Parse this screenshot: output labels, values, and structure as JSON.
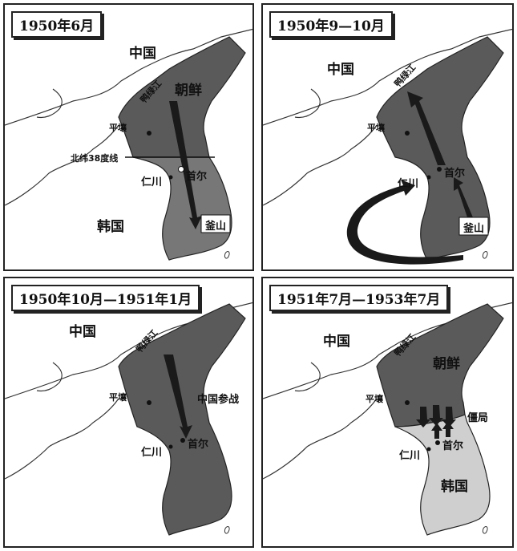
{
  "panels": [
    {
      "title": "1950年6月",
      "labels": {
        "china": "中国",
        "north_korea": "朝鲜",
        "river": "鸭绿江",
        "pyongyang": "平壤",
        "parallel": "北纬38度线",
        "incheon": "仁川",
        "seoul": "首尔",
        "south_korea": "韩国",
        "busan": "釜山"
      }
    },
    {
      "title": "1950年9—10月",
      "labels": {
        "china": "中国",
        "river": "鸭绿江",
        "pyongyang": "平壤",
        "incheon": "仁川",
        "seoul": "首尔",
        "busan": "釜山"
      }
    },
    {
      "title": "1950年10月—1951年1月",
      "labels": {
        "china": "中国",
        "river": "鸭绿江",
        "pyongyang": "平壤",
        "china_enters": "中国参战",
        "incheon": "仁川",
        "seoul": "首尔"
      }
    },
    {
      "title": "1951年7月—1953年7月",
      "labels": {
        "china": "中国",
        "river": "鸭绿江",
        "north_korea": "朝鲜",
        "pyongyang": "平壤",
        "stalemate": "僵局",
        "incheon": "仁川",
        "seoul": "首尔",
        "south_korea": "韩国"
      }
    }
  ],
  "colors": {
    "dark_fill": "#5a5a5a",
    "light_fill": "#cfcfcf",
    "arrow": "#1a1a1a",
    "coast": "#333333"
  }
}
